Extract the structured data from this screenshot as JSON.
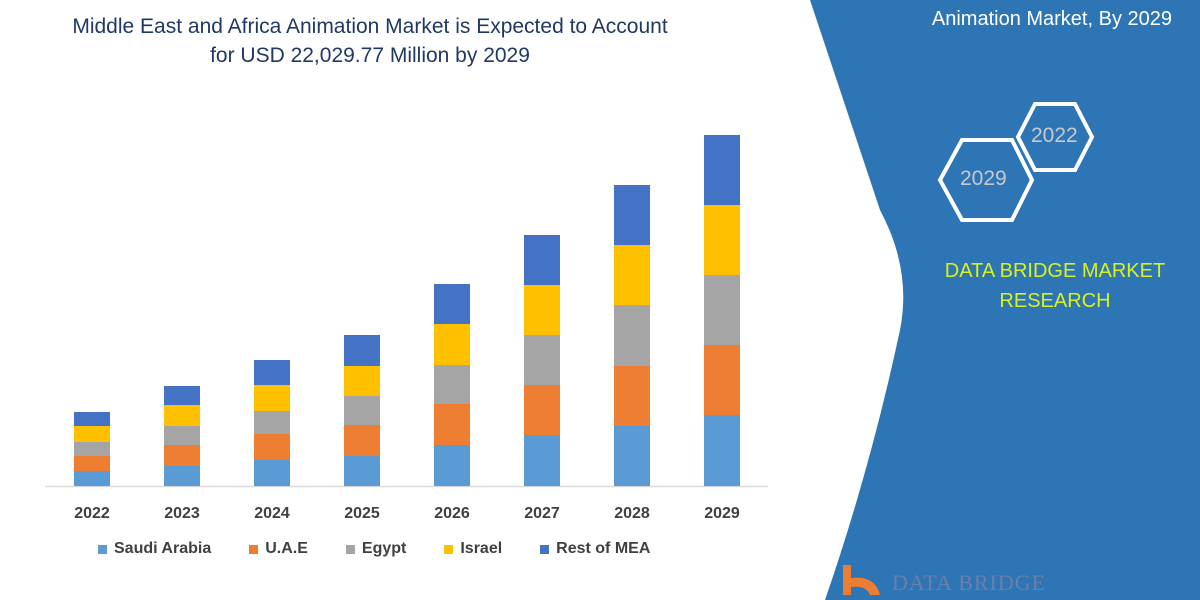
{
  "header": {
    "title_line1": "Middle East and Africa Animation Market is Expected to Account",
    "title_line2": "for USD 22,029.77 Million by 2029"
  },
  "side_panel": {
    "title": "Animation Market, By 2029",
    "hex_years": [
      "2022",
      "2029"
    ],
    "brand_line1": "DATA BRIDGE MARKET",
    "brand_line2": "RESEARCH",
    "logo_text": "DATA BRIDGE",
    "panel_color": "#2E75B6",
    "brand_text_color": "#D9F21C"
  },
  "chart_data": {
    "type": "bar",
    "stacked": true,
    "title": "",
    "xlabel": "",
    "ylabel": "",
    "ylim": [
      0,
      351
    ],
    "grid": false,
    "legend_position": "bottom",
    "categories": [
      "2022",
      "2023",
      "2024",
      "2025",
      "2026",
      "2027",
      "2028",
      "2029"
    ],
    "series": [
      {
        "name": "Saudi Arabia",
        "color": "#5B9BD5",
        "values": [
          15,
          20,
          26,
          30,
          41,
          51,
          60,
          71
        ]
      },
      {
        "name": "U.A.E",
        "color": "#ED7D31",
        "values": [
          15,
          21,
          26,
          31,
          41,
          50,
          60,
          70
        ]
      },
      {
        "name": "Egypt",
        "color": "#A5A5A5",
        "values": [
          14,
          19,
          23,
          29,
          39,
          50,
          61,
          70
        ]
      },
      {
        "name": "Israel",
        "color": "#FFC000",
        "values": [
          16,
          21,
          26,
          30,
          41,
          50,
          60,
          70
        ]
      },
      {
        "name": "Rest of MEA",
        "color": "#4472C4",
        "values": [
          14,
          19,
          25,
          31,
          40,
          50,
          60,
          70
        ]
      }
    ]
  }
}
